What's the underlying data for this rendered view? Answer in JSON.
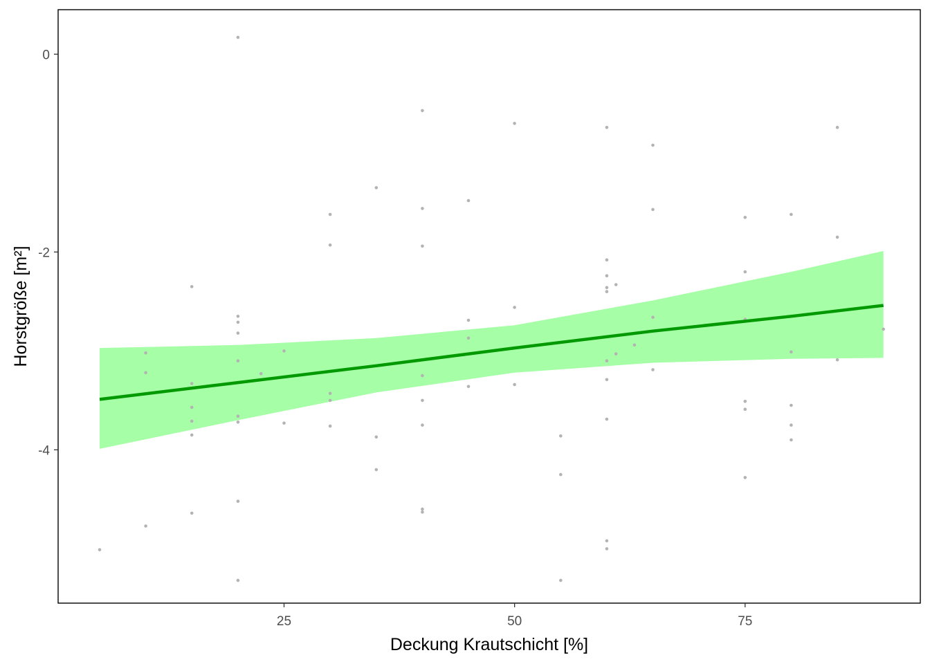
{
  "chart_data": {
    "type": "scatter",
    "xlabel": "Deckung Krautschicht [%]",
    "ylabel": "Horstgröße [m²]",
    "xlim": [
      0.5,
      94
    ],
    "ylim": [
      -5.55,
      0.45
    ],
    "x_ticks": [
      25,
      50,
      75
    ],
    "y_ticks": [
      0,
      -2,
      -4
    ],
    "grid": false,
    "legend": "none",
    "colors": {
      "points": "#b3b3b3",
      "line": "#009900",
      "ribbon": "#a6ffa6",
      "frame": "#000000"
    },
    "points": [
      [
        5,
        -5.01
      ],
      [
        10,
        -3.02
      ],
      [
        10,
        -3.22
      ],
      [
        10,
        -4.77
      ],
      [
        15,
        -2.35
      ],
      [
        15,
        -3.33
      ],
      [
        15,
        -3.57
      ],
      [
        15,
        -3.71
      ],
      [
        15,
        -3.85
      ],
      [
        15,
        -4.64
      ],
      [
        20,
        0.17
      ],
      [
        20,
        -2.65
      ],
      [
        20,
        -2.71
      ],
      [
        20,
        -2.82
      ],
      [
        20,
        -3.1
      ],
      [
        20,
        -3.66
      ],
      [
        20,
        -3.72
      ],
      [
        20,
        -4.52
      ],
      [
        20,
        -5.32
      ],
      [
        22.5,
        -3.23
      ],
      [
        25,
        -3.0
      ],
      [
        25,
        -3.73
      ],
      [
        30,
        -1.62
      ],
      [
        30,
        -1.93
      ],
      [
        30,
        -3.43
      ],
      [
        30,
        -3.5
      ],
      [
        30,
        -3.76
      ],
      [
        35,
        -1.35
      ],
      [
        35,
        -3.87
      ],
      [
        35,
        -4.2
      ],
      [
        40,
        -0.57
      ],
      [
        40,
        -1.56
      ],
      [
        40,
        -1.94
      ],
      [
        40,
        -3.25
      ],
      [
        40,
        -3.5
      ],
      [
        40,
        -3.75
      ],
      [
        40,
        -4.6
      ],
      [
        40,
        -4.63
      ],
      [
        45,
        -1.48
      ],
      [
        45,
        -2.69
      ],
      [
        45,
        -2.87
      ],
      [
        45,
        -3.36
      ],
      [
        50,
        -0.7
      ],
      [
        50,
        -2.56
      ],
      [
        50,
        -3.34
      ],
      [
        55,
        -3.86
      ],
      [
        55,
        -4.25
      ],
      [
        55,
        -5.32
      ],
      [
        60,
        -0.74
      ],
      [
        60,
        -2.08
      ],
      [
        60,
        -2.24
      ],
      [
        60,
        -2.36
      ],
      [
        60,
        -2.4
      ],
      [
        60,
        -3.1
      ],
      [
        60,
        -3.29
      ],
      [
        60,
        -3.69
      ],
      [
        60,
        -4.92
      ],
      [
        60,
        -5.0
      ],
      [
        61,
        -2.33
      ],
      [
        61,
        -3.03
      ],
      [
        63,
        -2.94
      ],
      [
        65,
        -0.92
      ],
      [
        65,
        -1.57
      ],
      [
        65,
        -2.66
      ],
      [
        65,
        -3.19
      ],
      [
        75,
        -1.65
      ],
      [
        75,
        -2.2
      ],
      [
        75,
        -2.68
      ],
      [
        75,
        -3.51
      ],
      [
        75,
        -3.59
      ],
      [
        75,
        -4.28
      ],
      [
        80,
        -1.62
      ],
      [
        80,
        -3.01
      ],
      [
        80,
        -3.55
      ],
      [
        80,
        -3.75
      ],
      [
        80,
        -3.9
      ],
      [
        85,
        -0.74
      ],
      [
        85,
        -1.85
      ],
      [
        85,
        -3.09
      ],
      [
        90,
        -2.78
      ]
    ],
    "fit_line": {
      "x": [
        5,
        20,
        35,
        50,
        65,
        80,
        90
      ],
      "y": [
        -3.49,
        -3.32,
        -3.15,
        -2.97,
        -2.8,
        -2.65,
        -2.54
      ]
    },
    "confidence_band": {
      "x": [
        5,
        20,
        35,
        50,
        65,
        80,
        90
      ],
      "upper": [
        -2.97,
        -2.94,
        -2.87,
        -2.74,
        -2.49,
        -2.2,
        -1.99
      ],
      "lower": [
        -3.99,
        -3.7,
        -3.42,
        -3.22,
        -3.12,
        -3.08,
        -3.07
      ]
    }
  }
}
